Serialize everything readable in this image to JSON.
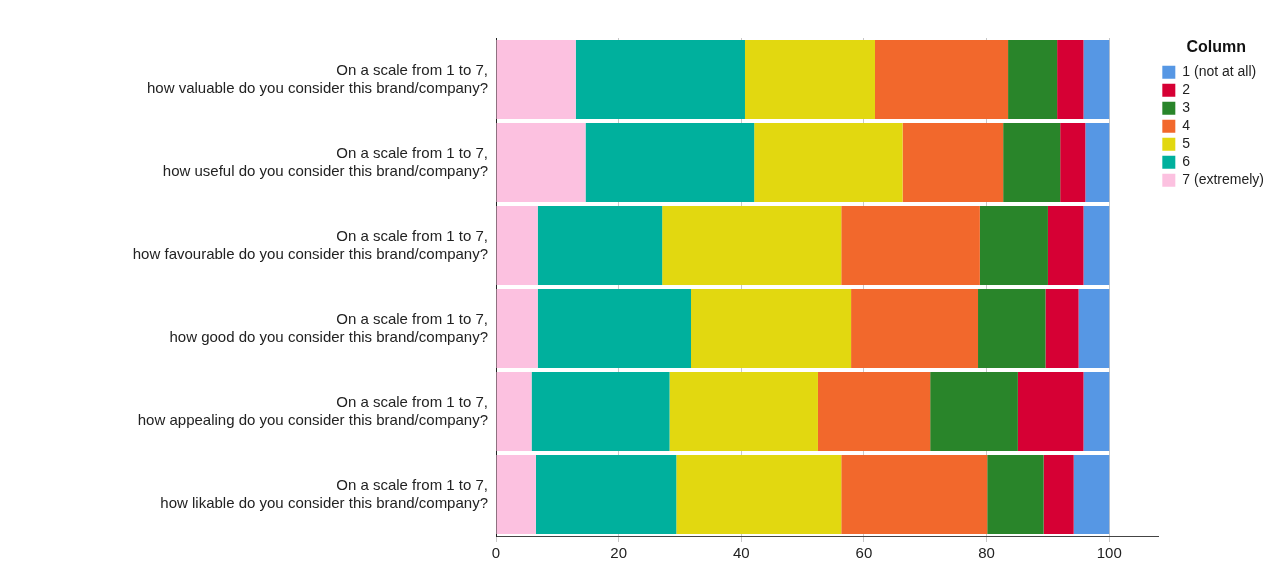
{
  "chart_data": {
    "type": "bar",
    "orientation": "horizontal",
    "stacked": true,
    "categories": [
      "On a scale from 1 to 7,\nhow valuable do you consider this brand/company?",
      "On a scale from 1 to 7,\nhow useful do you consider this brand/company?",
      "On a scale from 1 to 7,\nhow favourable do you consider this brand/company?",
      "On a scale from 1 to 7,\nhow good do you consider this brand/company?",
      "On a scale from 1 to 7,\nhow appealing do you consider this brand/company?",
      "On a scale from 1 to 7,\nhow likable do you consider this brand/company?"
    ],
    "series": [
      {
        "name": "7 (extremely)",
        "color": "#fcc1e0",
        "values": [
          13.0,
          14.6,
          6.8,
          6.8,
          5.8,
          6.5
        ]
      },
      {
        "name": "6",
        "color": "#00b09d",
        "values": [
          27.6,
          27.5,
          20.3,
          25.0,
          22.5,
          22.9
        ]
      },
      {
        "name": "5",
        "color": "#e2d810",
        "values": [
          21.2,
          24.2,
          29.2,
          26.1,
          24.2,
          26.9
        ]
      },
      {
        "name": "4",
        "color": "#f2682c",
        "values": [
          21.7,
          16.4,
          22.6,
          20.7,
          18.3,
          23.8
        ]
      },
      {
        "name": "3",
        "color": "#29852a",
        "values": [
          8.0,
          9.3,
          11.1,
          11.0,
          14.3,
          9.2
        ]
      },
      {
        "name": "2",
        "color": "#d60034",
        "values": [
          4.3,
          4.1,
          5.8,
          5.4,
          10.7,
          4.9
        ]
      },
      {
        "name": "1 (not at all)",
        "color": "#5697e4",
        "values": [
          4.2,
          3.9,
          4.2,
          5.0,
          4.2,
          5.8
        ]
      }
    ],
    "xlim": [
      0,
      108
    ],
    "xticks": [
      0,
      20,
      40,
      60,
      80,
      100
    ],
    "grid": "x",
    "legend": "top right",
    "legend_title": "Column"
  }
}
